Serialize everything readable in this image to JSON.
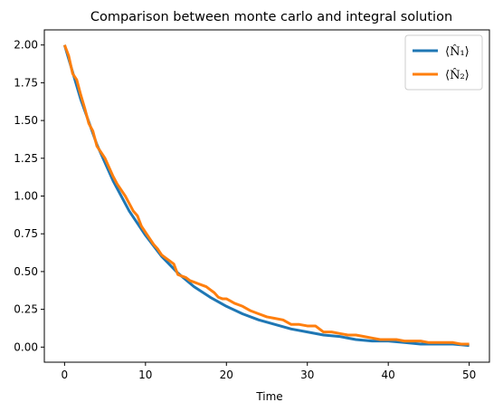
{
  "chart_data": {
    "type": "line",
    "title": "Comparison between monte carlo and integral solution",
    "xlabel": "Time",
    "ylabel": "",
    "xlim": [
      -2.5,
      52.5
    ],
    "ylim": [
      -0.1,
      2.1
    ],
    "xticks": [
      0,
      10,
      20,
      30,
      40,
      50
    ],
    "yticks": [
      0.0,
      0.25,
      0.5,
      0.75,
      1.0,
      1.25,
      1.5,
      1.75,
      2.0
    ],
    "xtick_labels": [
      "0",
      "10",
      "20",
      "30",
      "40",
      "50"
    ],
    "ytick_labels": [
      "0.00",
      "0.25",
      "0.50",
      "0.75",
      "1.00",
      "1.25",
      "1.50",
      "1.75",
      "2.00"
    ],
    "grid": false,
    "legend_position": "top-right",
    "series": [
      {
        "name": "⟨N̂₁⟩",
        "color": "#1f77b4",
        "x": [
          0,
          2,
          4,
          6,
          8,
          10,
          12,
          14,
          16,
          18,
          20,
          22,
          24,
          26,
          28,
          30,
          32,
          34,
          36,
          38,
          40,
          42,
          44,
          46,
          48,
          50
        ],
        "values": [
          2.0,
          1.64,
          1.34,
          1.1,
          0.9,
          0.74,
          0.6,
          0.49,
          0.4,
          0.33,
          0.27,
          0.22,
          0.18,
          0.15,
          0.12,
          0.1,
          0.08,
          0.07,
          0.05,
          0.04,
          0.04,
          0.03,
          0.02,
          0.02,
          0.02,
          0.01
        ]
      },
      {
        "name": "⟨N̂₂⟩",
        "color": "#ff7f0e",
        "x": [
          0,
          0.5,
          1,
          1.5,
          2,
          2.5,
          3,
          3.5,
          4,
          4.5,
          5,
          5.5,
          6,
          6.5,
          7,
          7.5,
          8,
          8.5,
          9,
          9.5,
          10,
          10.5,
          11,
          11.5,
          12,
          12.5,
          13,
          13.5,
          14,
          14.5,
          15,
          15.5,
          16,
          16.5,
          17,
          17.5,
          18,
          18.5,
          19,
          19.5,
          20,
          21,
          22,
          23,
          24,
          25,
          26,
          27,
          28,
          29,
          30,
          31,
          32,
          33,
          34,
          35,
          36,
          37,
          38,
          39,
          40,
          41,
          42,
          43,
          44,
          45,
          46,
          47,
          48,
          49,
          50
        ],
        "values": [
          2.0,
          1.93,
          1.81,
          1.77,
          1.67,
          1.58,
          1.48,
          1.43,
          1.33,
          1.29,
          1.25,
          1.19,
          1.13,
          1.08,
          1.04,
          1.0,
          0.95,
          0.9,
          0.87,
          0.8,
          0.76,
          0.72,
          0.68,
          0.65,
          0.61,
          0.59,
          0.57,
          0.55,
          0.48,
          0.47,
          0.46,
          0.44,
          0.43,
          0.42,
          0.41,
          0.4,
          0.38,
          0.36,
          0.33,
          0.32,
          0.32,
          0.29,
          0.27,
          0.24,
          0.22,
          0.2,
          0.19,
          0.18,
          0.15,
          0.15,
          0.14,
          0.14,
          0.1,
          0.1,
          0.09,
          0.08,
          0.08,
          0.07,
          0.06,
          0.05,
          0.05,
          0.05,
          0.04,
          0.04,
          0.04,
          0.03,
          0.03,
          0.03,
          0.03,
          0.02,
          0.02
        ]
      }
    ]
  }
}
